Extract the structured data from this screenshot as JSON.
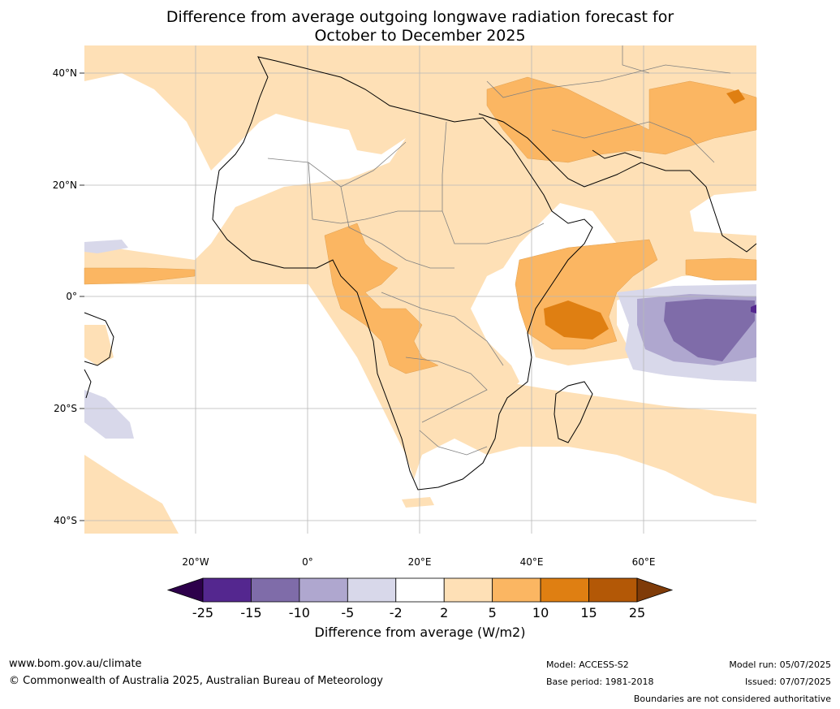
{
  "title_line1": "Difference from average outgoing longwave radiation forecast for",
  "title_line2": "October to December 2025",
  "lat_labels": [
    "40°N",
    "20°N",
    "0°",
    "20°S",
    "40°S"
  ],
  "lon_labels": [
    "20°W",
    "0°",
    "20°E",
    "40°E",
    "60°E"
  ],
  "colorbar": {
    "ticks": [
      "-25",
      "-15",
      "-10",
      "-5",
      "-2",
      "2",
      "5",
      "10",
      "15",
      "25"
    ],
    "colors": [
      "#54278f",
      "#7f6ca9",
      "#afa7cf",
      "#d8d8ea",
      "#ffffff",
      "#fee0b6",
      "#fbb662",
      "#df7f12",
      "#b35806"
    ],
    "under_color": "#2d004b",
    "over_color": "#7f3b08",
    "title": "Difference from average (W/m2)"
  },
  "footer": {
    "website": "www.bom.gov.au/climate",
    "copyright": "© Commonwealth of Australia 2025, Australian Bureau of Meteorology",
    "model": "Model: ACCESS-S2",
    "base_period": "Base period: 1981-2018",
    "model_run": "Model run: 05/07/2025",
    "issued": "Issued: 07/07/2025",
    "disclaimer": "Boundaries are not considered authoritative"
  }
}
